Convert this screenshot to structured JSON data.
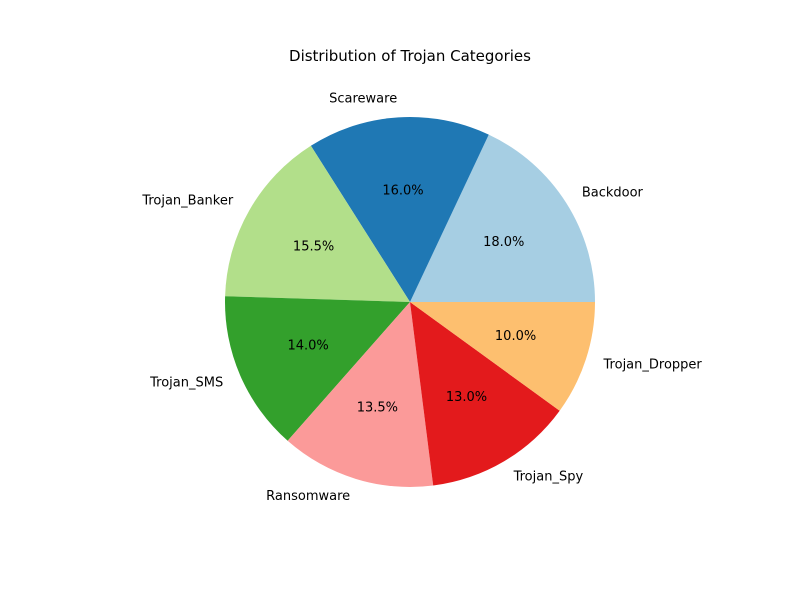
{
  "chart_data": {
    "type": "pie",
    "title": "Distribution of Trojan Categories",
    "slices": [
      {
        "label": "Backdoor",
        "value": 18.0,
        "pct_label": "18.0%",
        "color": "#a6cee3"
      },
      {
        "label": "Scareware",
        "value": 16.0,
        "pct_label": "16.0%",
        "color": "#1f78b4"
      },
      {
        "label": "Trojan_Banker",
        "value": 15.5,
        "pct_label": "15.5%",
        "color": "#b2df8a"
      },
      {
        "label": "Trojan_SMS",
        "value": 14.0,
        "pct_label": "14.0%",
        "color": "#33a02c"
      },
      {
        "label": "Ransomware",
        "value": 13.5,
        "pct_label": "13.5%",
        "color": "#fb9a99"
      },
      {
        "label": "Trojan_Spy",
        "value": 13.0,
        "pct_label": "13.0%",
        "color": "#e31a1c"
      },
      {
        "label": "Trojan_Dropper",
        "value": 10.0,
        "pct_label": "10.0%",
        "color": "#fdbf6f"
      }
    ],
    "start_angle_deg": 0,
    "direction": "counterclockwise",
    "legend": "none"
  }
}
